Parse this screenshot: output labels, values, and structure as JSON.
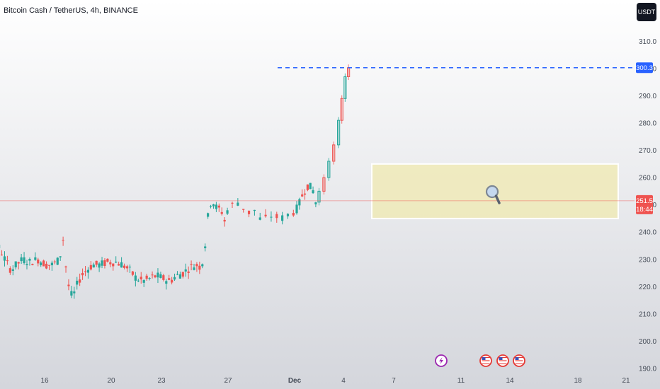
{
  "header": {
    "symbol_title": "Bitcoin Cash / TetherUS, 4h, BINANCE",
    "currency": "USDT"
  },
  "colors": {
    "up": "#26a69a",
    "down": "#ef5350",
    "target_line": "#2962ff",
    "current_line": "#ef5350",
    "zone_fill": "#f0eab0",
    "zone_border": "#ffffff"
  },
  "icons": [
    "magnifier-icon",
    "lightning-event-icon",
    "us-flag-event-icon"
  ],
  "chart_data": {
    "type": "candlestick",
    "title": "Bitcoin Cash / TetherUS, 4h, BINANCE",
    "ylim": [
      190,
      315
    ],
    "y_ticks": [
      "310.0",
      "300.0",
      "290.0",
      "280.0",
      "270.0",
      "260.0",
      "250.0",
      "240.0",
      "230.0",
      "220.0",
      "210.0",
      "200.0",
      "190.0"
    ],
    "x_date_labels": [
      "16",
      "20",
      "23",
      "27",
      "Dec",
      "4",
      "7",
      "11",
      "14",
      "18",
      "21"
    ],
    "price_path": [
      [
        10.3,
        237
      ],
      [
        10.5,
        240
      ],
      [
        10.7,
        236
      ],
      [
        10.9,
        232
      ],
      [
        11.1,
        228
      ],
      [
        11.4,
        233
      ],
      [
        11.7,
        239
      ],
      [
        12,
        242
      ],
      [
        12.2,
        245
      ],
      [
        12.5,
        240
      ],
      [
        12.8,
        236
      ],
      [
        13.1,
        233
      ],
      [
        13.4,
        229
      ],
      [
        13.7,
        226
      ],
      [
        14,
        228
      ],
      [
        14.4,
        230
      ],
      [
        14.8,
        229
      ],
      [
        15.3,
        230
      ],
      [
        15.8,
        228
      ],
      [
        16.2,
        228
      ],
      [
        16.6,
        230
      ],
      [
        16.8,
        238
      ],
      [
        17,
        226
      ],
      [
        17.2,
        218
      ],
      [
        17.4,
        216
      ],
      [
        17.6,
        220
      ],
      [
        17.9,
        224
      ],
      [
        18.2,
        226
      ],
      [
        18.6,
        228
      ],
      [
        19,
        228
      ],
      [
        19.5,
        229
      ],
      [
        20,
        229
      ],
      [
        20.4,
        228
      ],
      [
        20.8,
        226
      ],
      [
        21.2,
        223
      ],
      [
        21.6,
        222
      ],
      [
        22,
        223
      ],
      [
        22.4,
        224
      ],
      [
        22.8,
        223
      ],
      [
        23.2,
        222
      ],
      [
        23.6,
        224
      ],
      [
        24,
        225
      ],
      [
        24.4,
        227
      ],
      [
        24.8,
        228
      ],
      [
        25.1,
        227
      ],
      [
        25.3,
        234
      ],
      [
        25.5,
        246
      ],
      [
        25.7,
        252
      ],
      [
        26,
        249
      ],
      [
        26.3,
        248
      ],
      [
        26.5,
        244
      ],
      [
        26.7,
        249
      ],
      [
        27,
        251
      ],
      [
        27.3,
        247
      ],
      [
        27.5,
        248
      ],
      [
        27.7,
        244
      ],
      [
        28,
        246
      ],
      [
        28.3,
        245
      ],
      [
        28.6,
        247
      ],
      [
        28.9,
        249
      ],
      [
        29.2,
        254
      ],
      [
        29.5,
        257
      ],
      [
        29.8,
        256
      ],
      [
        30,
        251
      ]
    ],
    "projection": [
      [
        30.2,
        255
      ],
      [
        30.5,
        260
      ],
      [
        30.8,
        266
      ],
      [
        31.1,
        272
      ],
      [
        31.4,
        281
      ],
      [
        31.6,
        289
      ],
      [
        31.8,
        297
      ],
      [
        32,
        300.3
      ]
    ],
    "annotations": {
      "current_price": "251.5",
      "countdown": "18:44",
      "target_price": "300.3"
    },
    "zone": {
      "label": "",
      "price_top": 265,
      "price_bottom": 245,
      "date_start": 27.5,
      "date_end": 34.5
    }
  }
}
